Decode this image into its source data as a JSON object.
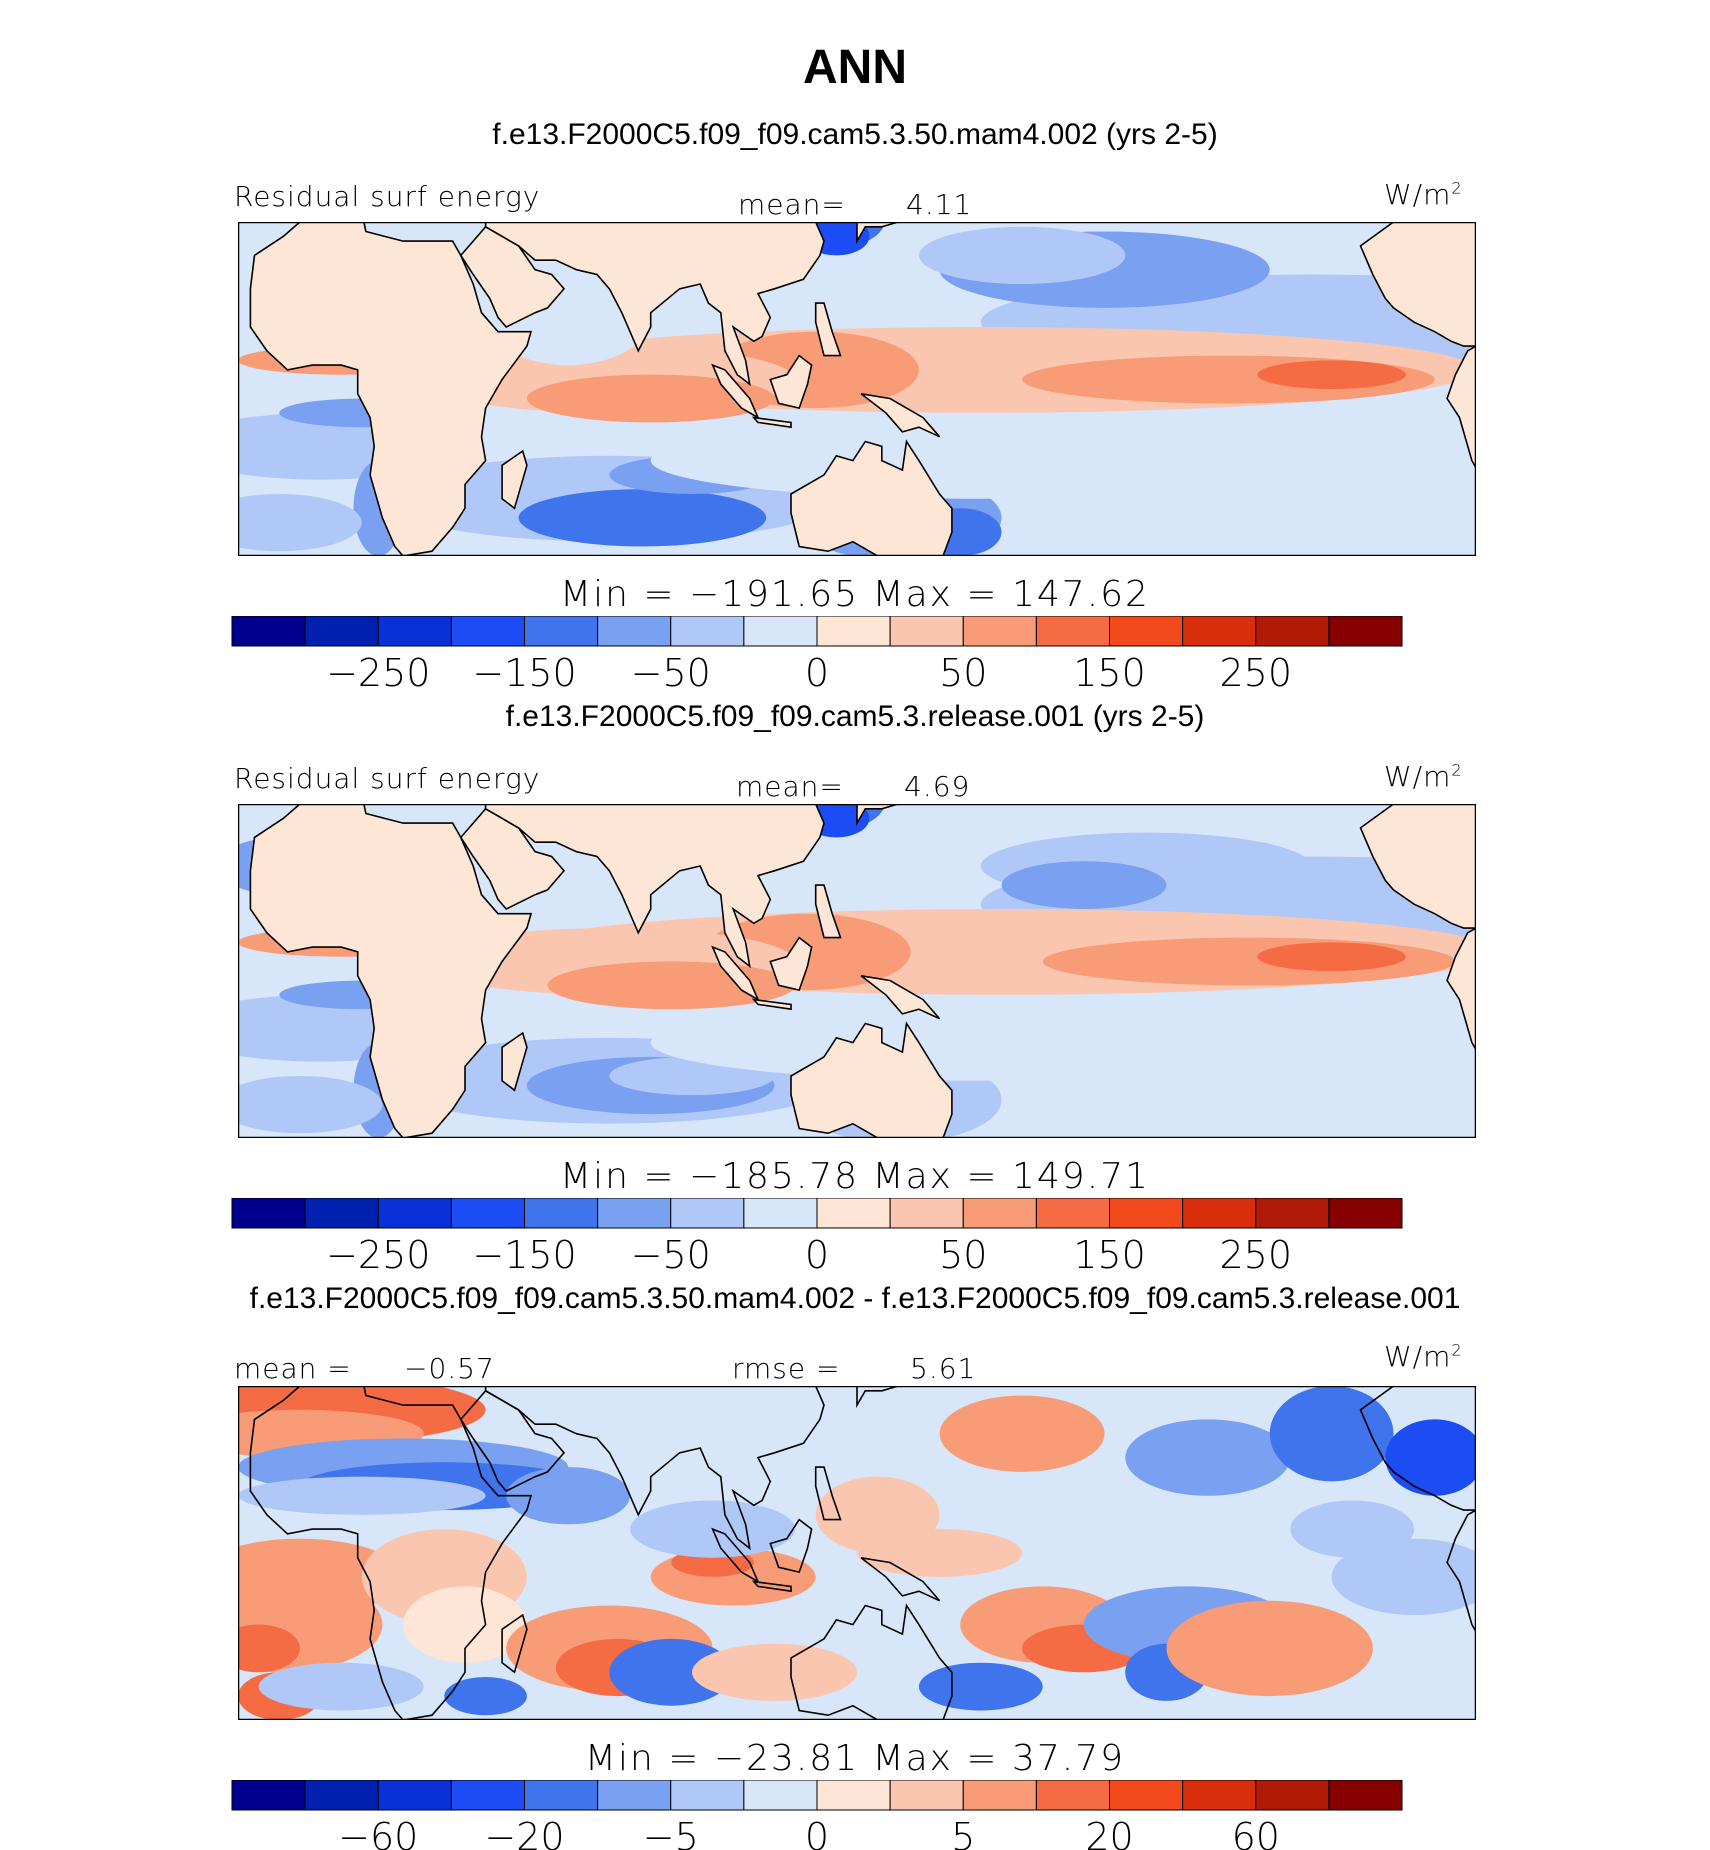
{
  "title": "ANN",
  "units_main": "W/m",
  "units_sup": "2",
  "chart_data": [
    {
      "type": "heatmap",
      "title": "f.e13.F2000C5.f09_f09.cam5.3.50.mam4.002 (yrs 2-5)",
      "variable_label": "Residual surf energy",
      "stat_label": "mean=",
      "stat_value": "4.11",
      "min_max_text": "Min = −191.65 Max = 147.62",
      "min": -191.65,
      "max": 147.62,
      "mean": 4.11,
      "colorbar_levels": [
        -300,
        -250,
        -200,
        -150,
        -100,
        -50,
        -25,
        0,
        25,
        50,
        100,
        150,
        200,
        250,
        300
      ],
      "colorbar_tick_labels": [
        "−250",
        "−150",
        "−50",
        "0",
        "50",
        "150",
        "250"
      ]
    },
    {
      "type": "heatmap",
      "title": "f.e13.F2000C5.f09_f09.cam5.3.release.001 (yrs 2-5)",
      "variable_label": "Residual surf energy",
      "stat_label": "mean=",
      "stat_value": "4.69",
      "min_max_text": "Min = −185.78 Max = 149.71",
      "min": -185.78,
      "max": 149.71,
      "mean": 4.69,
      "colorbar_levels": [
        -300,
        -250,
        -200,
        -150,
        -100,
        -50,
        -25,
        0,
        25,
        50,
        100,
        150,
        200,
        250,
        300
      ],
      "colorbar_tick_labels": [
        "−250",
        "−150",
        "−50",
        "0",
        "50",
        "150",
        "250"
      ]
    },
    {
      "type": "heatmap",
      "title": "f.e13.F2000C5.f09_f09.cam5.3.50.mam4.002 - f.e13.F2000C5.f09_f09.cam5.3.release.001",
      "variable_label": "mean =",
      "variable_value": "−0.57",
      "stat_label": "rmse =",
      "stat_value": "5.61",
      "min_max_text": "Min = −23.81 Max = 37.79",
      "min": -23.81,
      "max": 37.79,
      "mean": -0.57,
      "rmse": 5.61,
      "colorbar_levels": [
        -80,
        -60,
        -40,
        -20,
        -10,
        -5,
        -2,
        0,
        2,
        5,
        10,
        20,
        40,
        60,
        80
      ],
      "colorbar_tick_labels": [
        "−60",
        "−20",
        "−5",
        "0",
        "5",
        "20",
        "60"
      ]
    }
  ],
  "colors": {
    "palette": [
      "#00008e",
      "#0020b0",
      "#0a30d8",
      "#1b4cf4",
      "#3f74ec",
      "#7aa0f2",
      "#b0c8f8",
      "#d8e6fa",
      "#fde6d6",
      "#fac6b0",
      "#f89c78",
      "#f56c44",
      "#f24a1c",
      "#d82e0c",
      "#b01a06",
      "#860000"
    ],
    "land": "#fde6d6",
    "coast": "#000000"
  }
}
